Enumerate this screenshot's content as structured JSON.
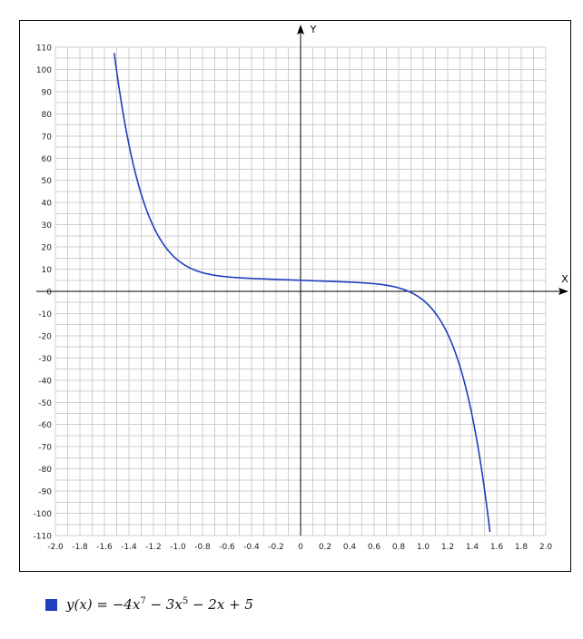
{
  "chart_data": {
    "type": "line",
    "xlabel": "X",
    "ylabel": "Y",
    "xlim": [
      -2.0,
      2.0
    ],
    "ylim": [
      -110,
      110
    ],
    "x_tick_labels": [
      "-2.0",
      "-1.8",
      "-1.6",
      "-1.4",
      "-1.2",
      "-1.0",
      "-0.8",
      "-0.6",
      "-0.4",
      "-0.2",
      "0",
      "0.2",
      "0.4",
      "0.6",
      "0.8",
      "1.0",
      "1.2",
      "1.4",
      "1.6",
      "1.8",
      "2.0"
    ],
    "y_tick_labels": [
      "110",
      "100",
      "90",
      "80",
      "70",
      "60",
      "50",
      "40",
      "30",
      "20",
      "10",
      "0",
      "-10",
      "-20",
      "-30",
      "-40",
      "-50",
      "-60",
      "-70",
      "-80",
      "-90",
      "-100",
      "-110"
    ],
    "grid": true,
    "legend_position": "bottom-left",
    "series": [
      {
        "name": "y(x) = -4x^7 - 3x^5 - 2x + 5",
        "color": "#1f3fbf",
        "x": [
          -1.52,
          -1.5,
          -1.45,
          -1.4,
          -1.35,
          -1.3,
          -1.25,
          -1.2,
          -1.15,
          -1.1,
          -1.05,
          -1.0,
          -0.95,
          -0.9,
          -0.85,
          -0.8,
          -0.7,
          -0.6,
          -0.5,
          -0.4,
          -0.3,
          -0.2,
          -0.1,
          0,
          0.1,
          0.2,
          0.3,
          0.4,
          0.5,
          0.6,
          0.7,
          0.8,
          0.85,
          0.9,
          0.95,
          1.0,
          1.05,
          1.1,
          1.15,
          1.2,
          1.25,
          1.3,
          1.35,
          1.4,
          1.45,
          1.5,
          1.55,
          1.56
        ],
        "y": [
          110.0,
          99.4,
          78.0,
          60.7,
          46.5,
          35.8,
          27.2,
          20.4,
          15.6,
          12.0,
          9.5,
          14.0,
          8.6,
          9.1,
          8.2,
          7.6,
          6.8,
          6.3,
          6.1,
          5.9,
          5.6,
          5.4,
          5.2,
          5.0,
          4.8,
          4.6,
          4.4,
          4.1,
          3.9,
          3.5,
          2.7,
          1.3,
          0.3,
          -1.0,
          -2.8,
          -4.0,
          -8.4,
          -12.5,
          -17.7,
          -24.2,
          -32.5,
          -42.9,
          -55.9,
          -72.3,
          -92.6,
          -110.0,
          -110.0,
          -110.0
        ],
        "x_legend": "y(x) = −4x⁷ − 3x⁵ − 2x + 5"
      }
    ]
  },
  "legend": {
    "swatch_color": "#1f3fbf",
    "prefix": "y(x) = −4x",
    "exp1": "7",
    "mid": " − 3x",
    "exp2": "5",
    "suffix": " − 2x + 5"
  }
}
